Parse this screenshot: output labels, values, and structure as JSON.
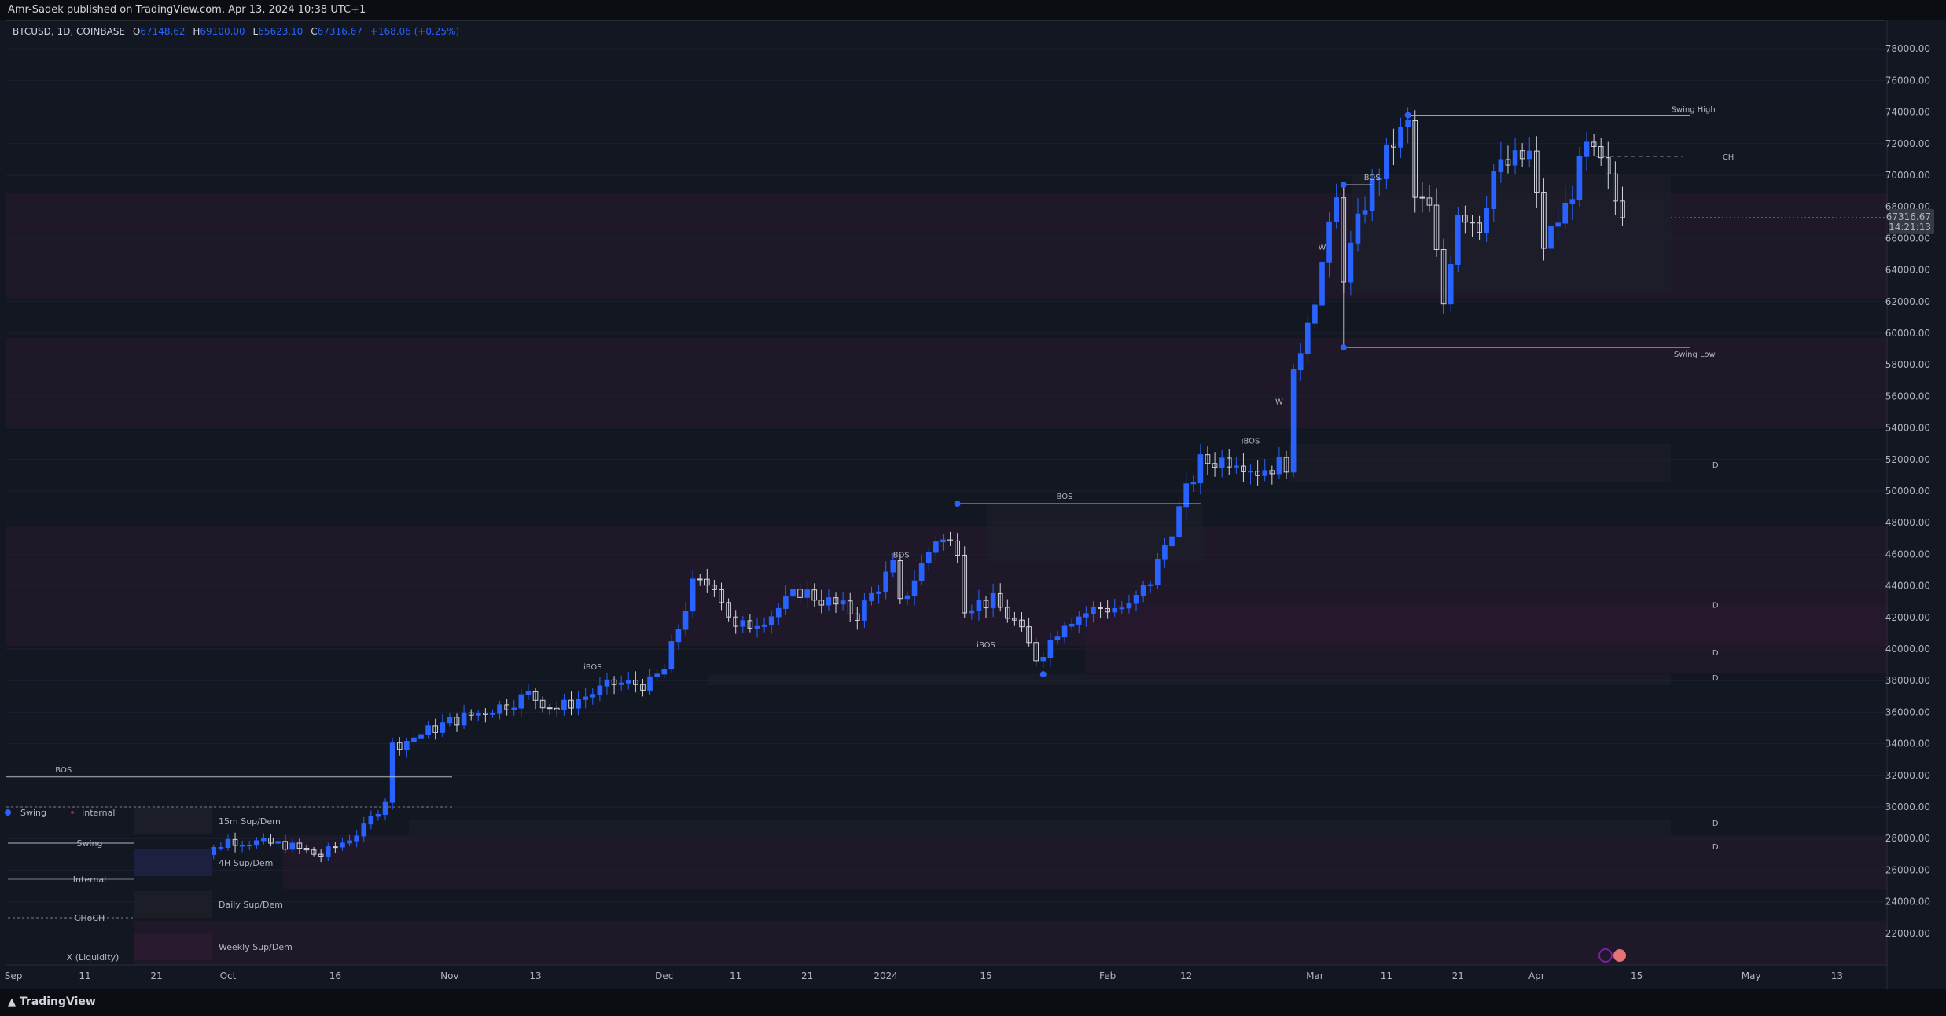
{
  "header": {
    "publisher_line": "Amr-Sadek published on TradingView.com, Apr 13, 2024 10:38 UTC+1"
  },
  "legend": {
    "symbol_line": "BTCUSD, 1D, COINBASE",
    "open_label": "O",
    "open": "67148.62",
    "high_label": "H",
    "high": "69100.00",
    "low_label": "L",
    "low": "65623.10",
    "close_label": "C",
    "close": "67316.67",
    "change": "+168.06 (+0.25%)"
  },
  "footer": {
    "brand": "TradingView"
  },
  "price_tag": {
    "price": "67316.67",
    "countdown": "14:21:13"
  },
  "colors": {
    "background": "#131722",
    "bull_candle": "#2962ff",
    "bear_candle": "#d1d4dc",
    "zone_purple": "#2a1a30",
    "zone_gray": "#1d2029",
    "accent": "#2962ff",
    "marker_red": "#b7184f"
  },
  "chart_data": {
    "type": "candlestick",
    "symbol": "BTCUSD",
    "timeframe": "1D",
    "exchange": "COINBASE",
    "y_axis": {
      "ticks": [
        22000,
        24000,
        26000,
        28000,
        30000,
        32000,
        34000,
        36000,
        38000,
        40000,
        42000,
        44000,
        46000,
        48000,
        50000,
        52000,
        54000,
        56000,
        58000,
        60000,
        62000,
        64000,
        66000,
        68000,
        70000,
        72000,
        74000,
        76000,
        78000
      ],
      "tick_labels": [
        "22000.00",
        "24000.00",
        "26000.00",
        "28000.00",
        "30000.00",
        "32000.00",
        "34000.00",
        "36000.00",
        "38000.00",
        "40000.00",
        "42000.00",
        "44000.00",
        "46000.00",
        "48000.00",
        "50000.00",
        "52000.00",
        "54000.00",
        "56000.00",
        "58000.00",
        "60000.00",
        "62000.00",
        "64000.00",
        "66000.00",
        "68000.00",
        "70000.00",
        "72000.00",
        "74000.00",
        "76000.00",
        "78000.00"
      ],
      "range": [
        20000,
        79600
      ]
    },
    "x_axis": {
      "date_range": [
        "2023-08-31",
        "2024-05-20"
      ],
      "ticks": [
        {
          "date": "2023-09-01",
          "label": "Sep"
        },
        {
          "date": "2023-09-11",
          "label": "11"
        },
        {
          "date": "2023-09-21",
          "label": "21"
        },
        {
          "date": "2023-10-01",
          "label": "Oct"
        },
        {
          "date": "2023-10-16",
          "label": "16"
        },
        {
          "date": "2023-11-01",
          "label": "Nov"
        },
        {
          "date": "2023-11-13",
          "label": "13"
        },
        {
          "date": "2023-12-01",
          "label": "Dec"
        },
        {
          "date": "2023-12-11",
          "label": "11"
        },
        {
          "date": "2023-12-21",
          "label": "21"
        },
        {
          "date": "2024-01-01",
          "label": "2024"
        },
        {
          "date": "2024-01-15",
          "label": "15"
        },
        {
          "date": "2024-02-01",
          "label": "Feb"
        },
        {
          "date": "2024-02-12",
          "label": "12"
        },
        {
          "date": "2024-03-01",
          "label": "Mar"
        },
        {
          "date": "2024-03-11",
          "label": "11"
        },
        {
          "date": "2024-03-21",
          "label": "21"
        },
        {
          "date": "2024-04-01",
          "label": "Apr"
        },
        {
          "date": "2024-04-15",
          "label": "15"
        },
        {
          "date": "2024-05-01",
          "label": "May"
        },
        {
          "date": "2024-05-13",
          "label": "13"
        }
      ]
    },
    "close_path": [
      [
        "2023-09-25",
        26200
      ],
      [
        "2023-10-01",
        27900
      ],
      [
        "2023-10-09",
        27600
      ],
      [
        "2023-10-14",
        26900
      ],
      [
        "2023-10-20",
        28600
      ],
      [
        "2023-10-23",
        30500
      ],
      [
        "2023-10-24",
        33900
      ],
      [
        "2023-10-26",
        34200
      ],
      [
        "2023-11-01",
        35400
      ],
      [
        "2023-11-09",
        36500
      ],
      [
        "2023-11-12",
        37100
      ],
      [
        "2023-11-16",
        36200
      ],
      [
        "2023-11-24",
        37800
      ],
      [
        "2023-11-29",
        37800
      ],
      [
        "2023-12-01",
        38700
      ],
      [
        "2023-12-05",
        44000
      ],
      [
        "2023-12-08",
        44200
      ],
      [
        "2023-12-11",
        41200
      ],
      [
        "2023-12-16",
        42200
      ],
      [
        "2023-12-20",
        43700
      ],
      [
        "2023-12-28",
        42200
      ],
      [
        "2024-01-02",
        45200
      ],
      [
        "2024-01-03",
        42800
      ],
      [
        "2024-01-08",
        47000
      ],
      [
        "2024-01-11",
        46500
      ],
      [
        "2024-01-12",
        42800
      ],
      [
        "2024-01-16",
        43000
      ],
      [
        "2024-01-19",
        41700
      ],
      [
        "2024-01-22",
        39500
      ],
      [
        "2024-01-23",
        39900
      ],
      [
        "2024-01-26",
        41800
      ],
      [
        "2024-01-31",
        42600
      ],
      [
        "2024-02-04",
        42600
      ],
      [
        "2024-02-07",
        44300
      ],
      [
        "2024-02-12",
        49900
      ],
      [
        "2024-02-14",
        51800
      ],
      [
        "2024-02-19",
        52100
      ],
      [
        "2024-02-22",
        51300
      ],
      [
        "2024-02-26",
        51800
      ],
      [
        "2024-02-27",
        57000
      ],
      [
        "2024-02-29",
        61200
      ],
      [
        "2024-03-01",
        62400
      ],
      [
        "2024-03-04",
        68300
      ],
      [
        "2024-03-05",
        63800
      ],
      [
        "2024-03-08",
        68300
      ],
      [
        "2024-03-12",
        72100
      ],
      [
        "2024-03-14",
        73100
      ],
      [
        "2024-03-15",
        68500
      ],
      [
        "2024-03-17",
        67800
      ],
      [
        "2024-03-19",
        61900
      ],
      [
        "2024-03-21",
        67900
      ],
      [
        "2024-03-24",
        66900
      ],
      [
        "2024-03-26",
        70200
      ],
      [
        "2024-03-31",
        71300
      ],
      [
        "2024-04-02",
        65600
      ],
      [
        "2024-04-05",
        67900
      ],
      [
        "2024-04-08",
        71600
      ],
      [
        "2024-04-10",
        70600
      ],
      [
        "2024-04-13",
        67316.67
      ]
    ],
    "last_price": 67316.67,
    "annotations": [
      {
        "text": "Swing High",
        "price": 73800
      },
      {
        "text": "Swing Low",
        "price": 59100
      },
      {
        "text": "CH",
        "price": 71200
      },
      {
        "text": "BOS",
        "price": 69400
      },
      {
        "text": "BOS",
        "price": 49200
      },
      {
        "text": "BOS",
        "price": 31900
      },
      {
        "text": "iBOS",
        "price": 45500
      },
      {
        "text": "iBOS",
        "price": 40400
      },
      {
        "text": "iBOS",
        "price": 38400
      },
      {
        "text": "iBOS",
        "price": 52700
      },
      {
        "text": "W",
        "price": 65500
      },
      {
        "text": "W",
        "price": 55700
      },
      {
        "text": "D",
        "price": 51700
      },
      {
        "text": "D",
        "price": 42800
      },
      {
        "text": "D",
        "price": 39800
      },
      {
        "text": "D",
        "price": 38200
      },
      {
        "text": "D",
        "price": 29000
      },
      {
        "text": "D",
        "price": 27500
      }
    ],
    "legend_items": [
      {
        "text": "Swing"
      },
      {
        "text": "Internal"
      },
      {
        "text": "Swing"
      },
      {
        "text": "Internal"
      },
      {
        "text": "CHoCH"
      },
      {
        "text": "X (Liquidity)"
      },
      {
        "text": "15m Sup/Dem"
      },
      {
        "text": "4H Sup/Dem"
      },
      {
        "text": "Daily Sup/Dem"
      },
      {
        "text": "Weekly Sup/Dem"
      }
    ]
  }
}
